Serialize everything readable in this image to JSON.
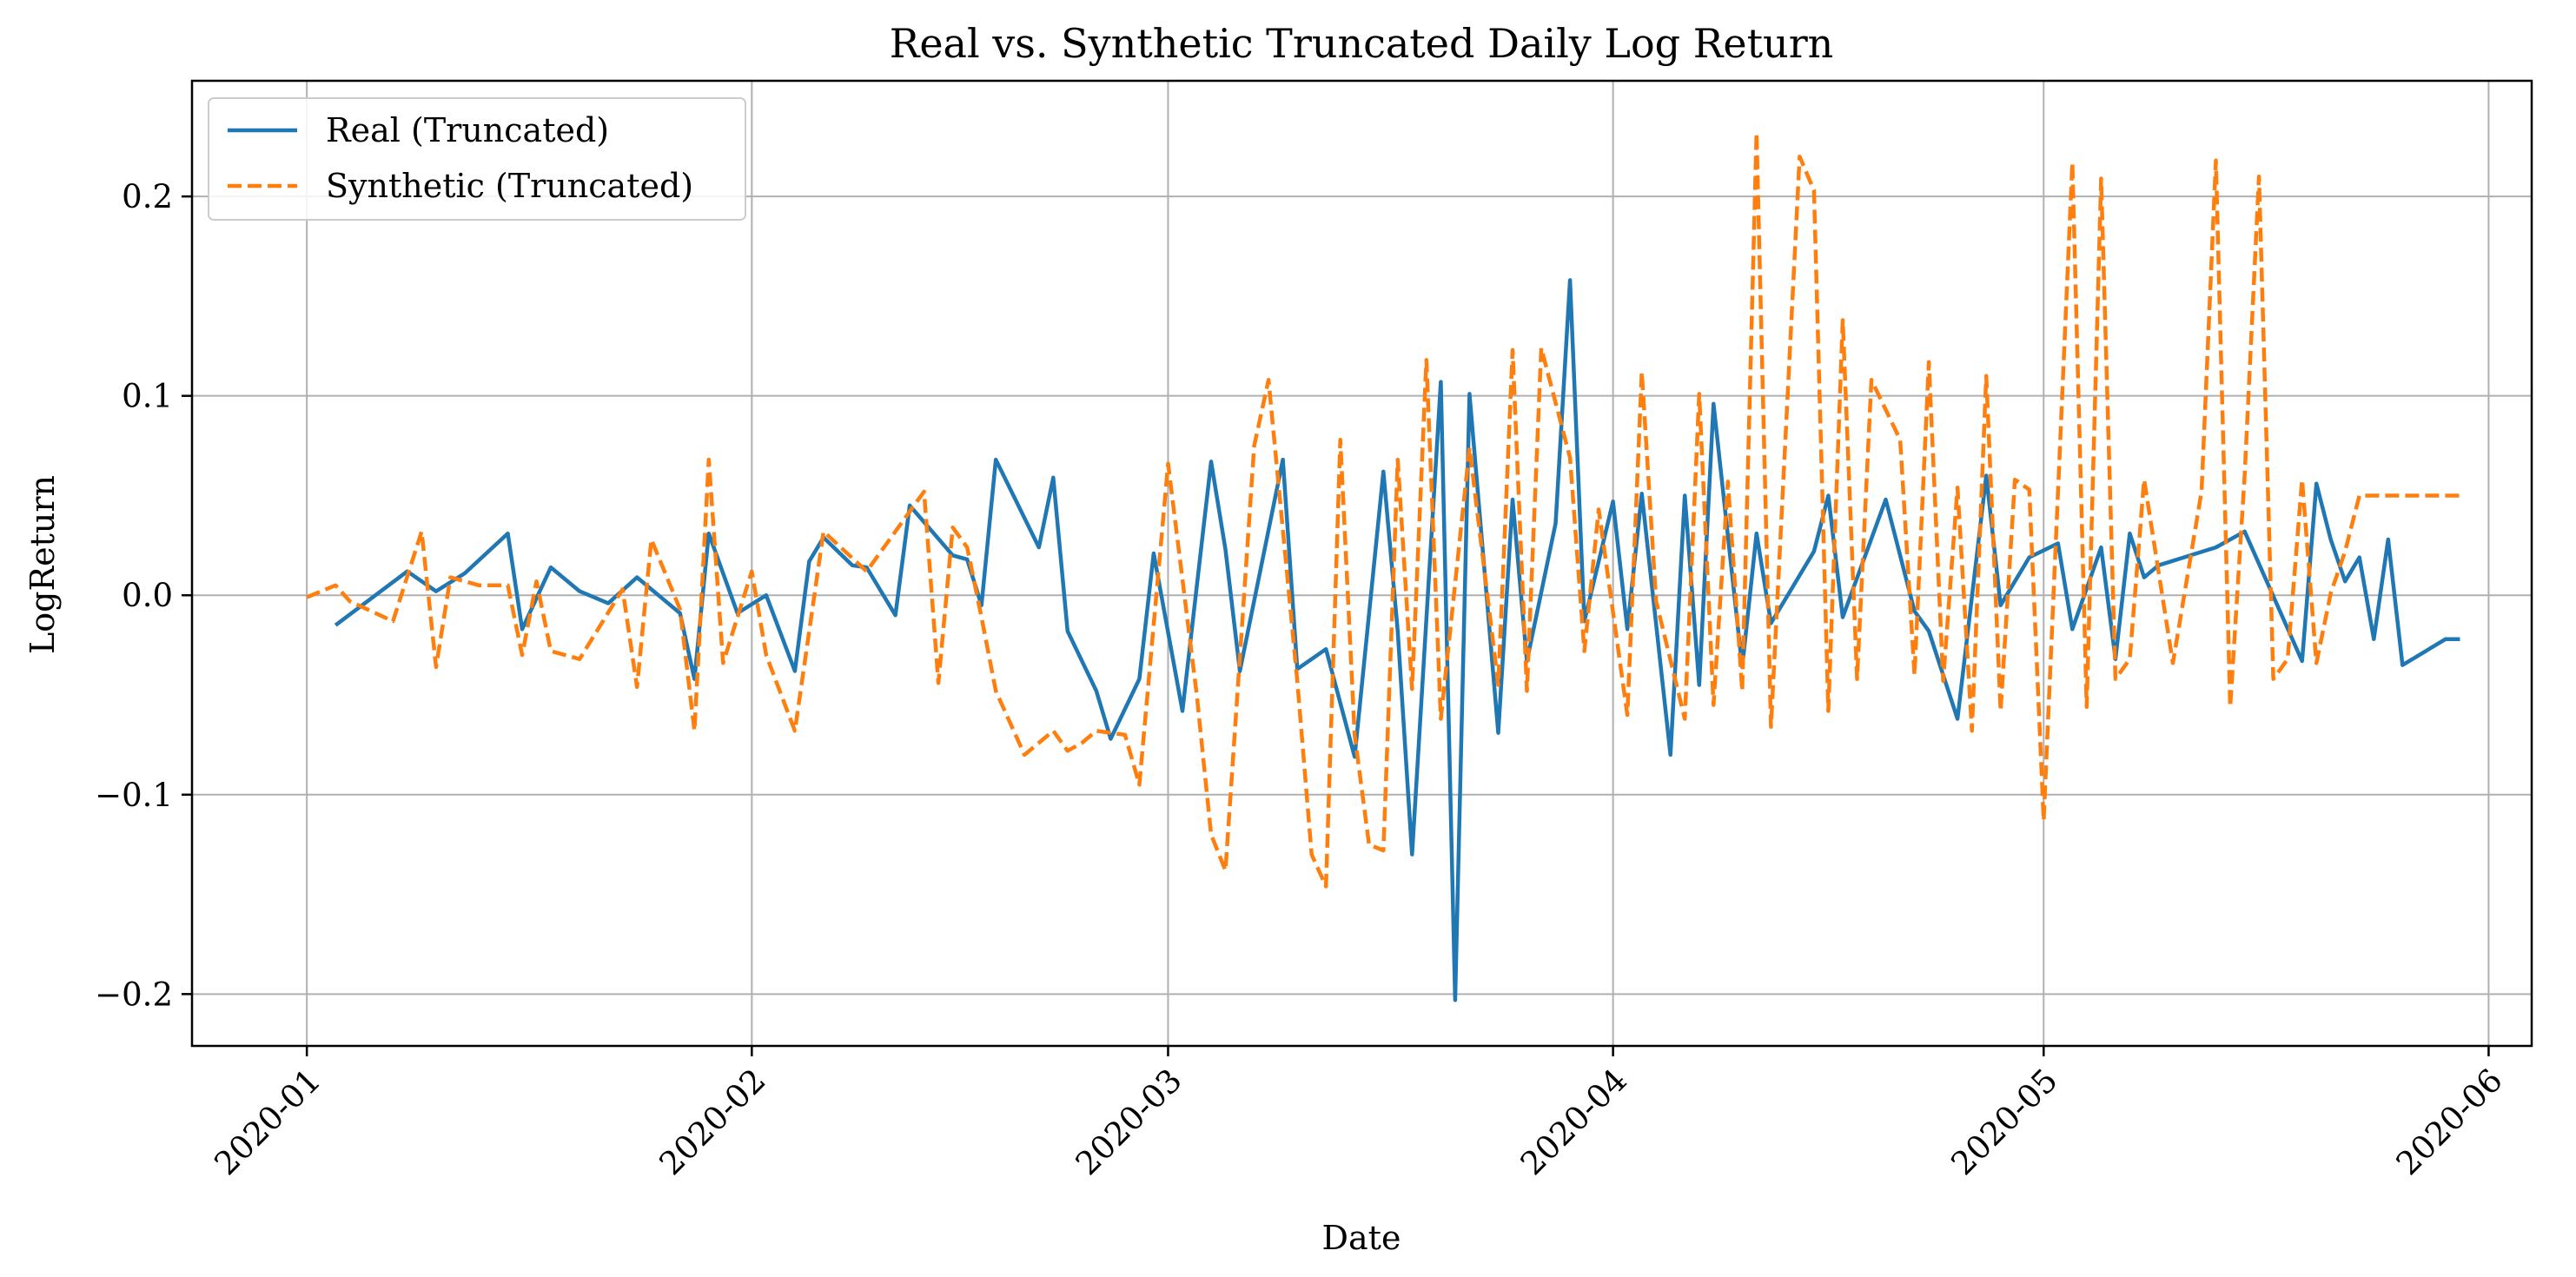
{
  "chart_data": {
    "type": "line",
    "title": "Real vs. Synthetic Truncated Daily Log Return",
    "xlabel": "Date",
    "ylabel": "LogReturn",
    "xlim": [
      "2019-12-24",
      "2020-06-04"
    ],
    "ylim": [
      -0.226,
      0.258
    ],
    "x_ticks": [
      "2020-01-01",
      "2020-02-01",
      "2020-03-01",
      "2020-04-01",
      "2020-05-01",
      "2020-06-01"
    ],
    "x_tick_labels": [
      "2020-01",
      "2020-02",
      "2020-03",
      "2020-04",
      "2020-05",
      "2020-06"
    ],
    "y_ticks": [
      -0.2,
      -0.1,
      0.0,
      0.1,
      0.2
    ],
    "y_tick_labels": [
      "−0.2",
      "−0.1",
      "0.0",
      "0.1",
      "0.2"
    ],
    "grid": true,
    "legend": {
      "position": "top-left"
    },
    "colors": {
      "real": "#1f77b4",
      "synthetic": "#ff7f0e",
      "grid": "#b0b0b0"
    },
    "series": [
      {
        "name": "Real (Truncated)",
        "style": "solid",
        "x": [
          "2020-01-03",
          "2020-01-08",
          "2020-01-10",
          "2020-01-12",
          "2020-01-15",
          "2020-01-16",
          "2020-01-18",
          "2020-01-20",
          "2020-01-22",
          "2020-01-24",
          "2020-01-27",
          "2020-01-28",
          "2020-01-29",
          "2020-01-31",
          "2020-02-02",
          "2020-02-04",
          "2020-02-05",
          "2020-02-06",
          "2020-02-08",
          "2020-02-09",
          "2020-02-11",
          "2020-02-12",
          "2020-02-15",
          "2020-02-16",
          "2020-02-17",
          "2020-02-18",
          "2020-02-21",
          "2020-02-22",
          "2020-02-23",
          "2020-02-25",
          "2020-02-26",
          "2020-02-28",
          "2020-02-29",
          "2020-03-02",
          "2020-03-04",
          "2020-03-05",
          "2020-03-06",
          "2020-03-09",
          "2020-03-10",
          "2020-03-12",
          "2020-03-14",
          "2020-03-16",
          "2020-03-17",
          "2020-03-18",
          "2020-03-20",
          "2020-03-21",
          "2020-03-22",
          "2020-03-24",
          "2020-03-25",
          "2020-03-26",
          "2020-03-28",
          "2020-03-29",
          "2020-03-30",
          "2020-04-01",
          "2020-04-02",
          "2020-04-03",
          "2020-04-05",
          "2020-04-06",
          "2020-04-07",
          "2020-04-08",
          "2020-04-10",
          "2020-04-11",
          "2020-04-12",
          "2020-04-15",
          "2020-04-16",
          "2020-04-17",
          "2020-04-20",
          "2020-04-22",
          "2020-04-23",
          "2020-04-25",
          "2020-04-27",
          "2020-04-28",
          "2020-04-30",
          "2020-05-02",
          "2020-05-03",
          "2020-05-05",
          "2020-05-06",
          "2020-05-07",
          "2020-05-08",
          "2020-05-09",
          "2020-05-13",
          "2020-05-15",
          "2020-05-19",
          "2020-05-20",
          "2020-05-21",
          "2020-05-22",
          "2020-05-23",
          "2020-05-24",
          "2020-05-25",
          "2020-05-26",
          "2020-05-29",
          "2020-05-30"
        ],
        "values": [
          -0.015,
          0.012,
          0.002,
          0.011,
          0.031,
          -0.017,
          0.014,
          0.002,
          -0.004,
          0.009,
          -0.009,
          -0.042,
          0.031,
          -0.009,
          0.0,
          -0.038,
          0.017,
          0.029,
          0.015,
          0.014,
          -0.01,
          0.045,
          0.02,
          0.018,
          -0.005,
          0.068,
          0.024,
          0.059,
          -0.018,
          -0.048,
          -0.072,
          -0.042,
          0.021,
          -0.058,
          0.067,
          0.023,
          -0.038,
          0.068,
          -0.037,
          -0.027,
          -0.081,
          0.062,
          -0.018,
          -0.13,
          0.107,
          -0.203,
          0.101,
          -0.069,
          0.048,
          -0.033,
          0.036,
          0.158,
          -0.013,
          0.047,
          -0.017,
          0.051,
          -0.08,
          0.05,
          -0.045,
          0.096,
          -0.036,
          0.031,
          -0.014,
          0.022,
          0.05,
          -0.011,
          0.048,
          -0.008,
          -0.018,
          -0.062,
          0.06,
          -0.005,
          0.019,
          0.026,
          -0.017,
          0.024,
          -0.032,
          0.031,
          0.009,
          0.015,
          0.024,
          0.032,
          -0.033,
          0.056,
          0.028,
          0.007,
          0.019,
          -0.022,
          0.028,
          -0.035,
          -0.022,
          -0.022
        ]
      },
      {
        "name": "Synthetic (Truncated)",
        "style": "dashed",
        "x": [
          "2020-01-01",
          "2020-01-03",
          "2020-01-04",
          "2020-01-07",
          "2020-01-09",
          "2020-01-10",
          "2020-01-11",
          "2020-01-13",
          "2020-01-15",
          "2020-01-16",
          "2020-01-17",
          "2020-01-18",
          "2020-01-20",
          "2020-01-23",
          "2020-01-24",
          "2020-01-25",
          "2020-01-27",
          "2020-01-28",
          "2020-01-29",
          "2020-01-30",
          "2020-02-01",
          "2020-02-02",
          "2020-02-04",
          "2020-02-06",
          "2020-02-09",
          "2020-02-11",
          "2020-02-13",
          "2020-02-14",
          "2020-02-15",
          "2020-02-16",
          "2020-02-17",
          "2020-02-18",
          "2020-02-20",
          "2020-02-22",
          "2020-02-23",
          "2020-02-24",
          "2020-02-25",
          "2020-02-27",
          "2020-02-28",
          "2020-03-01",
          "2020-03-03",
          "2020-03-04",
          "2020-03-05",
          "2020-03-07",
          "2020-03-08",
          "2020-03-10",
          "2020-03-11",
          "2020-03-12",
          "2020-03-13",
          "2020-03-14",
          "2020-03-15",
          "2020-03-16",
          "2020-03-17",
          "2020-03-18",
          "2020-03-19",
          "2020-03-20",
          "2020-03-22",
          "2020-03-24",
          "2020-03-25",
          "2020-03-26",
          "2020-03-27",
          "2020-03-29",
          "2020-03-30",
          "2020-03-31",
          "2020-04-02",
          "2020-04-03",
          "2020-04-04",
          "2020-04-06",
          "2020-04-07",
          "2020-04-08",
          "2020-04-09",
          "2020-04-10",
          "2020-04-11",
          "2020-04-12",
          "2020-04-14",
          "2020-04-15",
          "2020-04-16",
          "2020-04-17",
          "2020-04-18",
          "2020-04-19",
          "2020-04-21",
          "2020-04-22",
          "2020-04-23",
          "2020-04-24",
          "2020-04-25",
          "2020-04-26",
          "2020-04-27",
          "2020-04-28",
          "2020-04-29",
          "2020-04-30",
          "2020-05-01",
          "2020-05-03",
          "2020-05-04",
          "2020-05-05",
          "2020-05-06",
          "2020-05-07",
          "2020-05-08",
          "2020-05-10",
          "2020-05-12",
          "2020-05-13",
          "2020-05-14",
          "2020-05-15",
          "2020-05-16",
          "2020-05-17",
          "2020-05-18",
          "2020-05-19",
          "2020-05-20",
          "2020-05-21",
          "2020-05-22",
          "2020-05-23",
          "2020-05-24",
          "2020-05-25",
          "2020-05-26",
          "2020-05-27",
          "2020-05-30"
        ],
        "values": [
          -0.001,
          0.005,
          -0.003,
          -0.013,
          0.032,
          -0.036,
          0.009,
          0.005,
          0.005,
          -0.03,
          0.007,
          -0.028,
          -0.032,
          0.003,
          -0.046,
          0.028,
          -0.007,
          -0.068,
          0.068,
          -0.034,
          0.012,
          -0.03,
          -0.068,
          0.032,
          0.012,
          0.032,
          0.052,
          -0.044,
          0.034,
          0.024,
          -0.011,
          -0.048,
          -0.08,
          -0.068,
          -0.078,
          -0.074,
          -0.068,
          -0.07,
          -0.095,
          0.066,
          -0.05,
          -0.12,
          -0.138,
          0.075,
          0.108,
          -0.043,
          -0.13,
          -0.146,
          0.078,
          -0.07,
          -0.125,
          -0.128,
          0.068,
          -0.047,
          0.118,
          -0.062,
          0.074,
          -0.045,
          0.123,
          -0.048,
          0.124,
          0.069,
          -0.028,
          0.043,
          -0.06,
          0.112,
          -0.003,
          -0.062,
          0.101,
          -0.055,
          0.057,
          -0.048,
          0.232,
          -0.066,
          0.22,
          0.203,
          -0.058,
          0.138,
          -0.042,
          0.108,
          0.078,
          -0.04,
          0.117,
          -0.043,
          0.054,
          -0.068,
          0.11,
          -0.058,
          0.058,
          0.053,
          -0.113,
          0.217,
          -0.056,
          0.209,
          -0.042,
          -0.032,
          0.058,
          -0.034,
          0.052,
          0.218,
          -0.056,
          0.06,
          0.21,
          -0.042,
          -0.032,
          0.058,
          -0.034,
          0.001,
          0.022,
          0.05,
          0.05,
          0.05,
          0.05,
          0.05,
          0.05
        ]
      }
    ]
  }
}
